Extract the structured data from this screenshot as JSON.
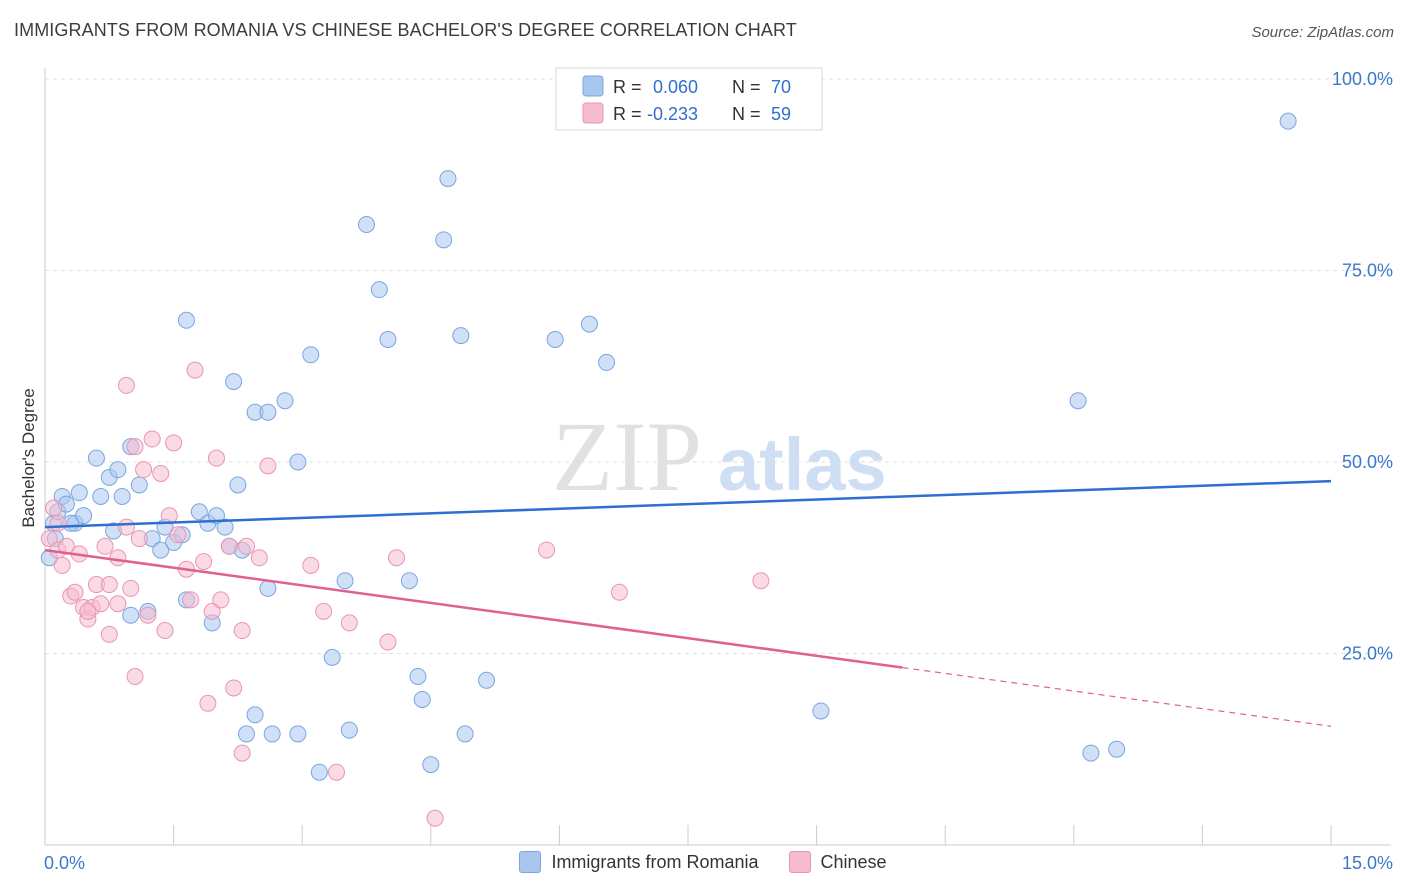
{
  "header": {
    "title": "IMMIGRANTS FROM ROMANIA VS CHINESE BACHELOR'S DEGREE CORRELATION CHART",
    "source": "Source: ZipAtlas.com"
  },
  "watermark": {
    "zip": "ZIP",
    "atlas": "atlas"
  },
  "chart_data": {
    "type": "scatter",
    "ylabel": "Bachelor's Degree",
    "xlim": [
      0,
      15
    ],
    "ylim": [
      0,
      100
    ],
    "x_tick_labels": [
      {
        "value": 0,
        "label": "0.0%"
      },
      {
        "value": 15,
        "label": "15.0%"
      }
    ],
    "y_tick_labels": [
      {
        "value": 25,
        "label": "25.0%"
      },
      {
        "value": 50,
        "label": "50.0%"
      },
      {
        "value": 75,
        "label": "75.0%"
      },
      {
        "value": 100,
        "label": "100.0%"
      }
    ],
    "grid": true,
    "legend_position": "top-center",
    "stats": [
      {
        "r_label": "R =",
        "r_value": "0.060",
        "n_label": "N =",
        "n_value": "70"
      },
      {
        "r_label": "R =",
        "r_value": "-0.233",
        "n_label": "N =",
        "n_value": "59"
      }
    ],
    "series": [
      {
        "name": "Immigrants from Romania",
        "color": "#7aa6e0",
        "fill": "#a9c6ee",
        "line_color": "#2f6fcf",
        "trend": {
          "x0": 0,
          "y0": 41.5,
          "x1": 15,
          "y1": 47.5,
          "dash_from": null
        },
        "points": [
          [
            0.05,
            37.5
          ],
          [
            0.1,
            42
          ],
          [
            0.15,
            43.5
          ],
          [
            0.2,
            45.5
          ],
          [
            0.25,
            44.5
          ],
          [
            0.35,
            42
          ],
          [
            0.4,
            46
          ],
          [
            0.45,
            43
          ],
          [
            0.6,
            50.5
          ],
          [
            0.65,
            45.5
          ],
          [
            0.75,
            48
          ],
          [
            0.85,
            49
          ],
          [
            0.9,
            45.5
          ],
          [
            1.0,
            52
          ],
          [
            1.1,
            47
          ],
          [
            0.8,
            41
          ],
          [
            1.25,
            40
          ],
          [
            1.35,
            38.5
          ],
          [
            1.4,
            41.5
          ],
          [
            1.5,
            39.5
          ],
          [
            1.6,
            40.5
          ],
          [
            1.65,
            32
          ],
          [
            1.8,
            43.5
          ],
          [
            1.9,
            42
          ],
          [
            1.95,
            29
          ],
          [
            2.0,
            43
          ],
          [
            2.1,
            41.5
          ],
          [
            2.15,
            39
          ],
          [
            2.3,
            38.5
          ],
          [
            2.25,
            47
          ],
          [
            1.0,
            30
          ],
          [
            1.2,
            30.5
          ],
          [
            1.65,
            68.5
          ],
          [
            2.2,
            60.5
          ],
          [
            2.45,
            17
          ],
          [
            2.35,
            14.5
          ],
          [
            2.45,
            56.5
          ],
          [
            2.6,
            56.5
          ],
          [
            2.6,
            33.5
          ],
          [
            2.65,
            14.5
          ],
          [
            2.8,
            58
          ],
          [
            2.95,
            14.5
          ],
          [
            2.95,
            50
          ],
          [
            3.1,
            64
          ],
          [
            3.2,
            9.5
          ],
          [
            3.35,
            24.5
          ],
          [
            3.5,
            34.5
          ],
          [
            3.55,
            15
          ],
          [
            3.75,
            81
          ],
          [
            3.9,
            72.5
          ],
          [
            4.0,
            66
          ],
          [
            4.25,
            34.5
          ],
          [
            4.35,
            22
          ],
          [
            4.4,
            19
          ],
          [
            4.5,
            10.5
          ],
          [
            4.65,
            79
          ],
          [
            4.7,
            87
          ],
          [
            4.85,
            66.5
          ],
          [
            4.9,
            14.5
          ],
          [
            5.15,
            21.5
          ],
          [
            5.95,
            66
          ],
          [
            6.35,
            68
          ],
          [
            6.55,
            63
          ],
          [
            9.05,
            17.5
          ],
          [
            12.05,
            58
          ],
          [
            12.2,
            12
          ],
          [
            12.5,
            12.5
          ],
          [
            14.5,
            94.5
          ],
          [
            0.3,
            42
          ],
          [
            0.12,
            40
          ]
        ]
      },
      {
        "name": "Chinese",
        "color": "#e995b2",
        "fill": "#f5bcd0",
        "line_color": "#e0608f",
        "trend": {
          "x0": 0,
          "y0": 38.5,
          "x1": 15,
          "y1": 15.5,
          "dash_from": 10
        },
        "points": [
          [
            0.05,
            40
          ],
          [
            0.1,
            44
          ],
          [
            0.15,
            38.5
          ],
          [
            0.2,
            36.5
          ],
          [
            0.25,
            39
          ],
          [
            0.3,
            32.5
          ],
          [
            0.35,
            33
          ],
          [
            0.4,
            38
          ],
          [
            0.45,
            31
          ],
          [
            0.5,
            29.5
          ],
          [
            0.55,
            31
          ],
          [
            0.6,
            34
          ],
          [
            0.65,
            31.5
          ],
          [
            0.7,
            39
          ],
          [
            0.75,
            34
          ],
          [
            0.75,
            27.5
          ],
          [
            0.85,
            37.5
          ],
          [
            0.85,
            31.5
          ],
          [
            0.95,
            41.5
          ],
          [
            1.0,
            33.5
          ],
          [
            1.05,
            52
          ],
          [
            0.95,
            60
          ],
          [
            1.1,
            40
          ],
          [
            1.15,
            49
          ],
          [
            1.2,
            30
          ],
          [
            1.25,
            53
          ],
          [
            1.35,
            48.5
          ],
          [
            1.4,
            28
          ],
          [
            1.45,
            43
          ],
          [
            1.5,
            52.5
          ],
          [
            1.55,
            40.5
          ],
          [
            1.65,
            36
          ],
          [
            1.7,
            32
          ],
          [
            1.75,
            62
          ],
          [
            1.85,
            37
          ],
          [
            1.9,
            18.5
          ],
          [
            1.95,
            30.5
          ],
          [
            2.0,
            50.5
          ],
          [
            2.05,
            32
          ],
          [
            2.15,
            39
          ],
          [
            2.2,
            20.5
          ],
          [
            2.3,
            28
          ],
          [
            2.35,
            39
          ],
          [
            2.3,
            12
          ],
          [
            2.5,
            37.5
          ],
          [
            2.6,
            49.5
          ],
          [
            3.1,
            36.5
          ],
          [
            3.25,
            30.5
          ],
          [
            3.4,
            9.5
          ],
          [
            3.55,
            29
          ],
          [
            4.0,
            26.5
          ],
          [
            4.1,
            37.5
          ],
          [
            4.55,
            3.5
          ],
          [
            5.85,
            38.5
          ],
          [
            6.7,
            33
          ],
          [
            8.35,
            34.5
          ],
          [
            0.15,
            42
          ],
          [
            1.05,
            22
          ],
          [
            0.5,
            30.5
          ]
        ]
      }
    ]
  }
}
